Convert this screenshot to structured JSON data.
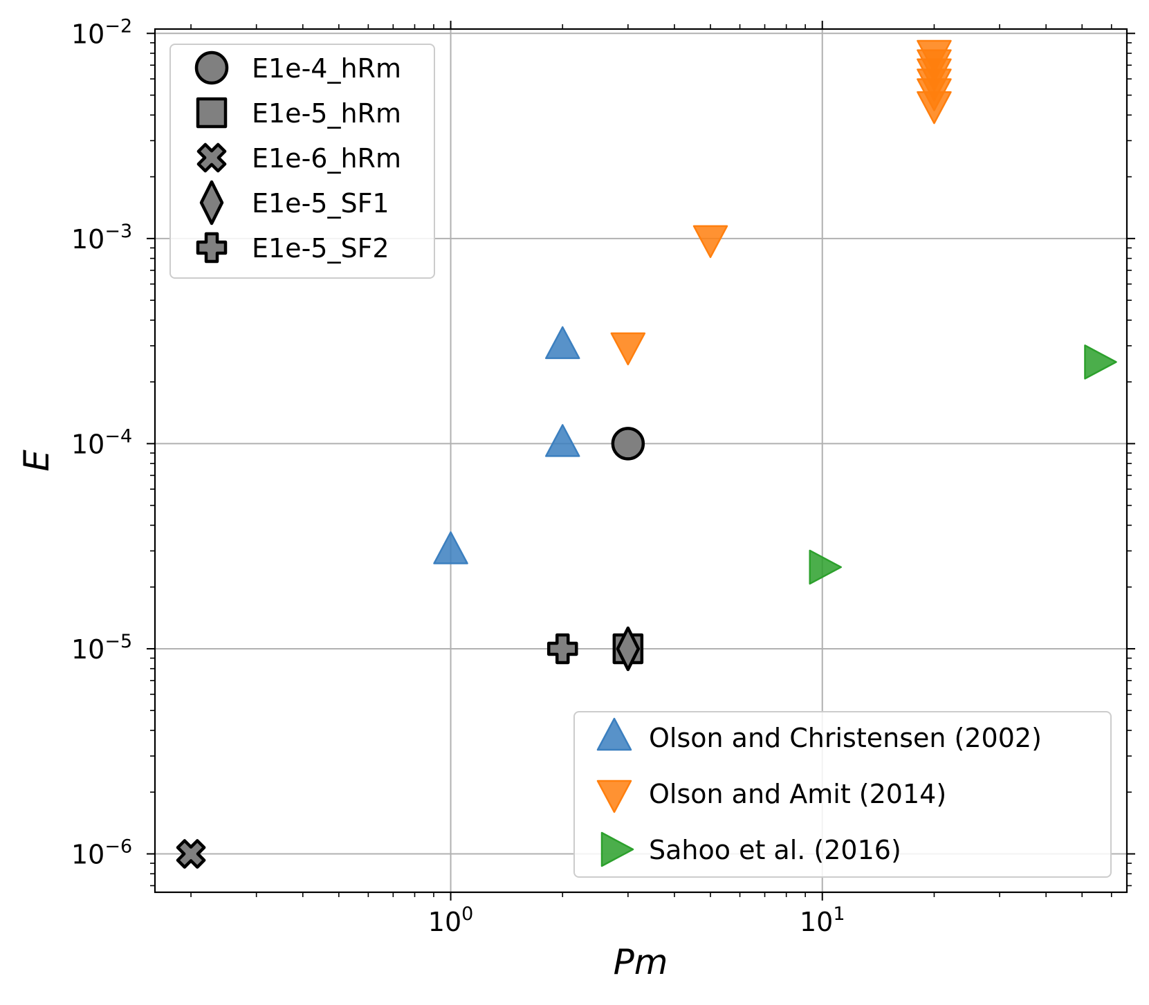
{
  "chart_data": {
    "type": "scatter",
    "x_scale": "log",
    "y_scale": "log",
    "xlabel": "Pm",
    "ylabel": "E",
    "xlim": [
      0.16,
      66
    ],
    "ylim": [
      6.5e-07,
      0.0105
    ],
    "grid": true,
    "x_ticks": [
      {
        "value": 1,
        "base": "10",
        "exp": "0"
      },
      {
        "value": 10,
        "base": "10",
        "exp": "1"
      }
    ],
    "y_ticks": [
      {
        "value": 1e-06,
        "base": "10",
        "exp": "−6"
      },
      {
        "value": 1e-05,
        "base": "10",
        "exp": "−5"
      },
      {
        "value": 0.0001,
        "base": "10",
        "exp": "−4"
      },
      {
        "value": 0.001,
        "base": "10",
        "exp": "−3"
      },
      {
        "value": 0.01,
        "base": "10",
        "exp": "−2"
      }
    ],
    "series": [
      {
        "name": "Olson and Christensen (2002)",
        "marker": "triangle-up",
        "color": "#3b7fbf",
        "points": [
          [
            1,
            3e-05
          ],
          [
            2,
            0.0001
          ],
          [
            2,
            0.0003
          ]
        ]
      },
      {
        "name": "Olson and Amit (2014)",
        "marker": "triangle-down",
        "color": "#ff7f0e",
        "points": [
          [
            3,
            0.0003
          ],
          [
            5,
            0.001
          ],
          [
            20,
            0.0045
          ],
          [
            20,
            0.0052
          ],
          [
            20,
            0.0058
          ],
          [
            20,
            0.0065
          ],
          [
            20,
            0.0072
          ],
          [
            20,
            0.008
          ]
        ]
      },
      {
        "name": "Sahoo et al. (2016)",
        "marker": "triangle-right",
        "color": "#2ca02c",
        "points": [
          [
            10,
            2.5e-05
          ],
          [
            55,
            0.00025
          ]
        ]
      },
      {
        "name": "E1e-4_hRm",
        "marker": "circle",
        "color": "#808080",
        "points": [
          [
            3,
            0.0001
          ]
        ]
      },
      {
        "name": "E1e-5_hRm",
        "marker": "square",
        "color": "#808080",
        "points": [
          [
            3,
            1e-05
          ]
        ]
      },
      {
        "name": "E1e-6_hRm",
        "marker": "x",
        "color": "#808080",
        "points": [
          [
            0.2,
            1e-06
          ]
        ]
      },
      {
        "name": "E1e-5_SF1",
        "marker": "diamond",
        "color": "#808080",
        "points": [
          [
            3,
            1e-05
          ]
        ]
      },
      {
        "name": "E1e-5_SF2",
        "marker": "plus",
        "color": "#808080",
        "points": [
          [
            2,
            1e-05
          ]
        ]
      }
    ],
    "legends": [
      {
        "position": "top-left",
        "entries": [
          "E1e-4_hRm",
          "E1e-5_hRm",
          "E1e-6_hRm",
          "E1e-5_SF1",
          "E1e-5_SF2"
        ]
      },
      {
        "position": "lower-right",
        "entries": [
          "Olson and Christensen (2002)",
          "Olson and Amit (2014)",
          "Sahoo et al. (2016)"
        ]
      }
    ]
  }
}
